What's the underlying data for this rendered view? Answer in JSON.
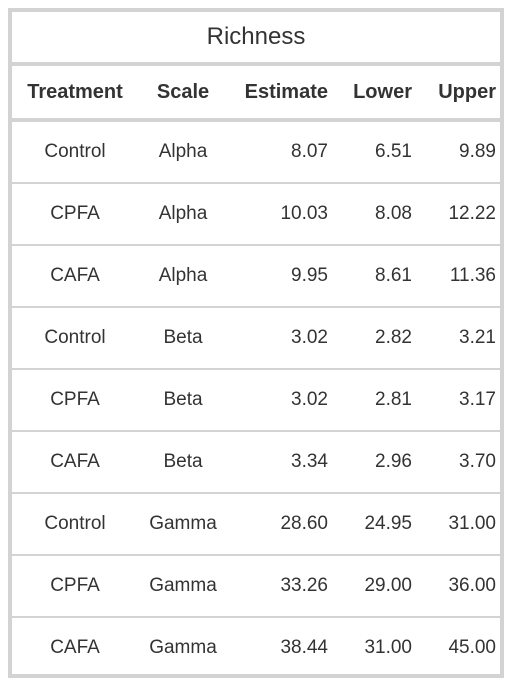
{
  "table": {
    "caption": "Richness",
    "headers": [
      "Treatment",
      "Scale",
      "Estimate",
      "Lower",
      "Upper"
    ],
    "rows": [
      [
        "Control",
        "Alpha",
        "8.07",
        "6.51",
        "9.89"
      ],
      [
        "CPFA",
        "Alpha",
        "10.03",
        "8.08",
        "12.22"
      ],
      [
        "CAFA",
        "Alpha",
        "9.95",
        "8.61",
        "11.36"
      ],
      [
        "Control",
        "Beta",
        "3.02",
        "2.82",
        "3.21"
      ],
      [
        "CPFA",
        "Beta",
        "3.02",
        "2.81",
        "3.17"
      ],
      [
        "CAFA",
        "Beta",
        "3.34",
        "2.96",
        "3.70"
      ],
      [
        "Control",
        "Gamma",
        "28.60",
        "24.95",
        "31.00"
      ],
      [
        "CPFA",
        "Gamma",
        "33.26",
        "29.00",
        "36.00"
      ],
      [
        "CAFA",
        "Gamma",
        "38.44",
        "31.00",
        "45.00"
      ]
    ]
  }
}
